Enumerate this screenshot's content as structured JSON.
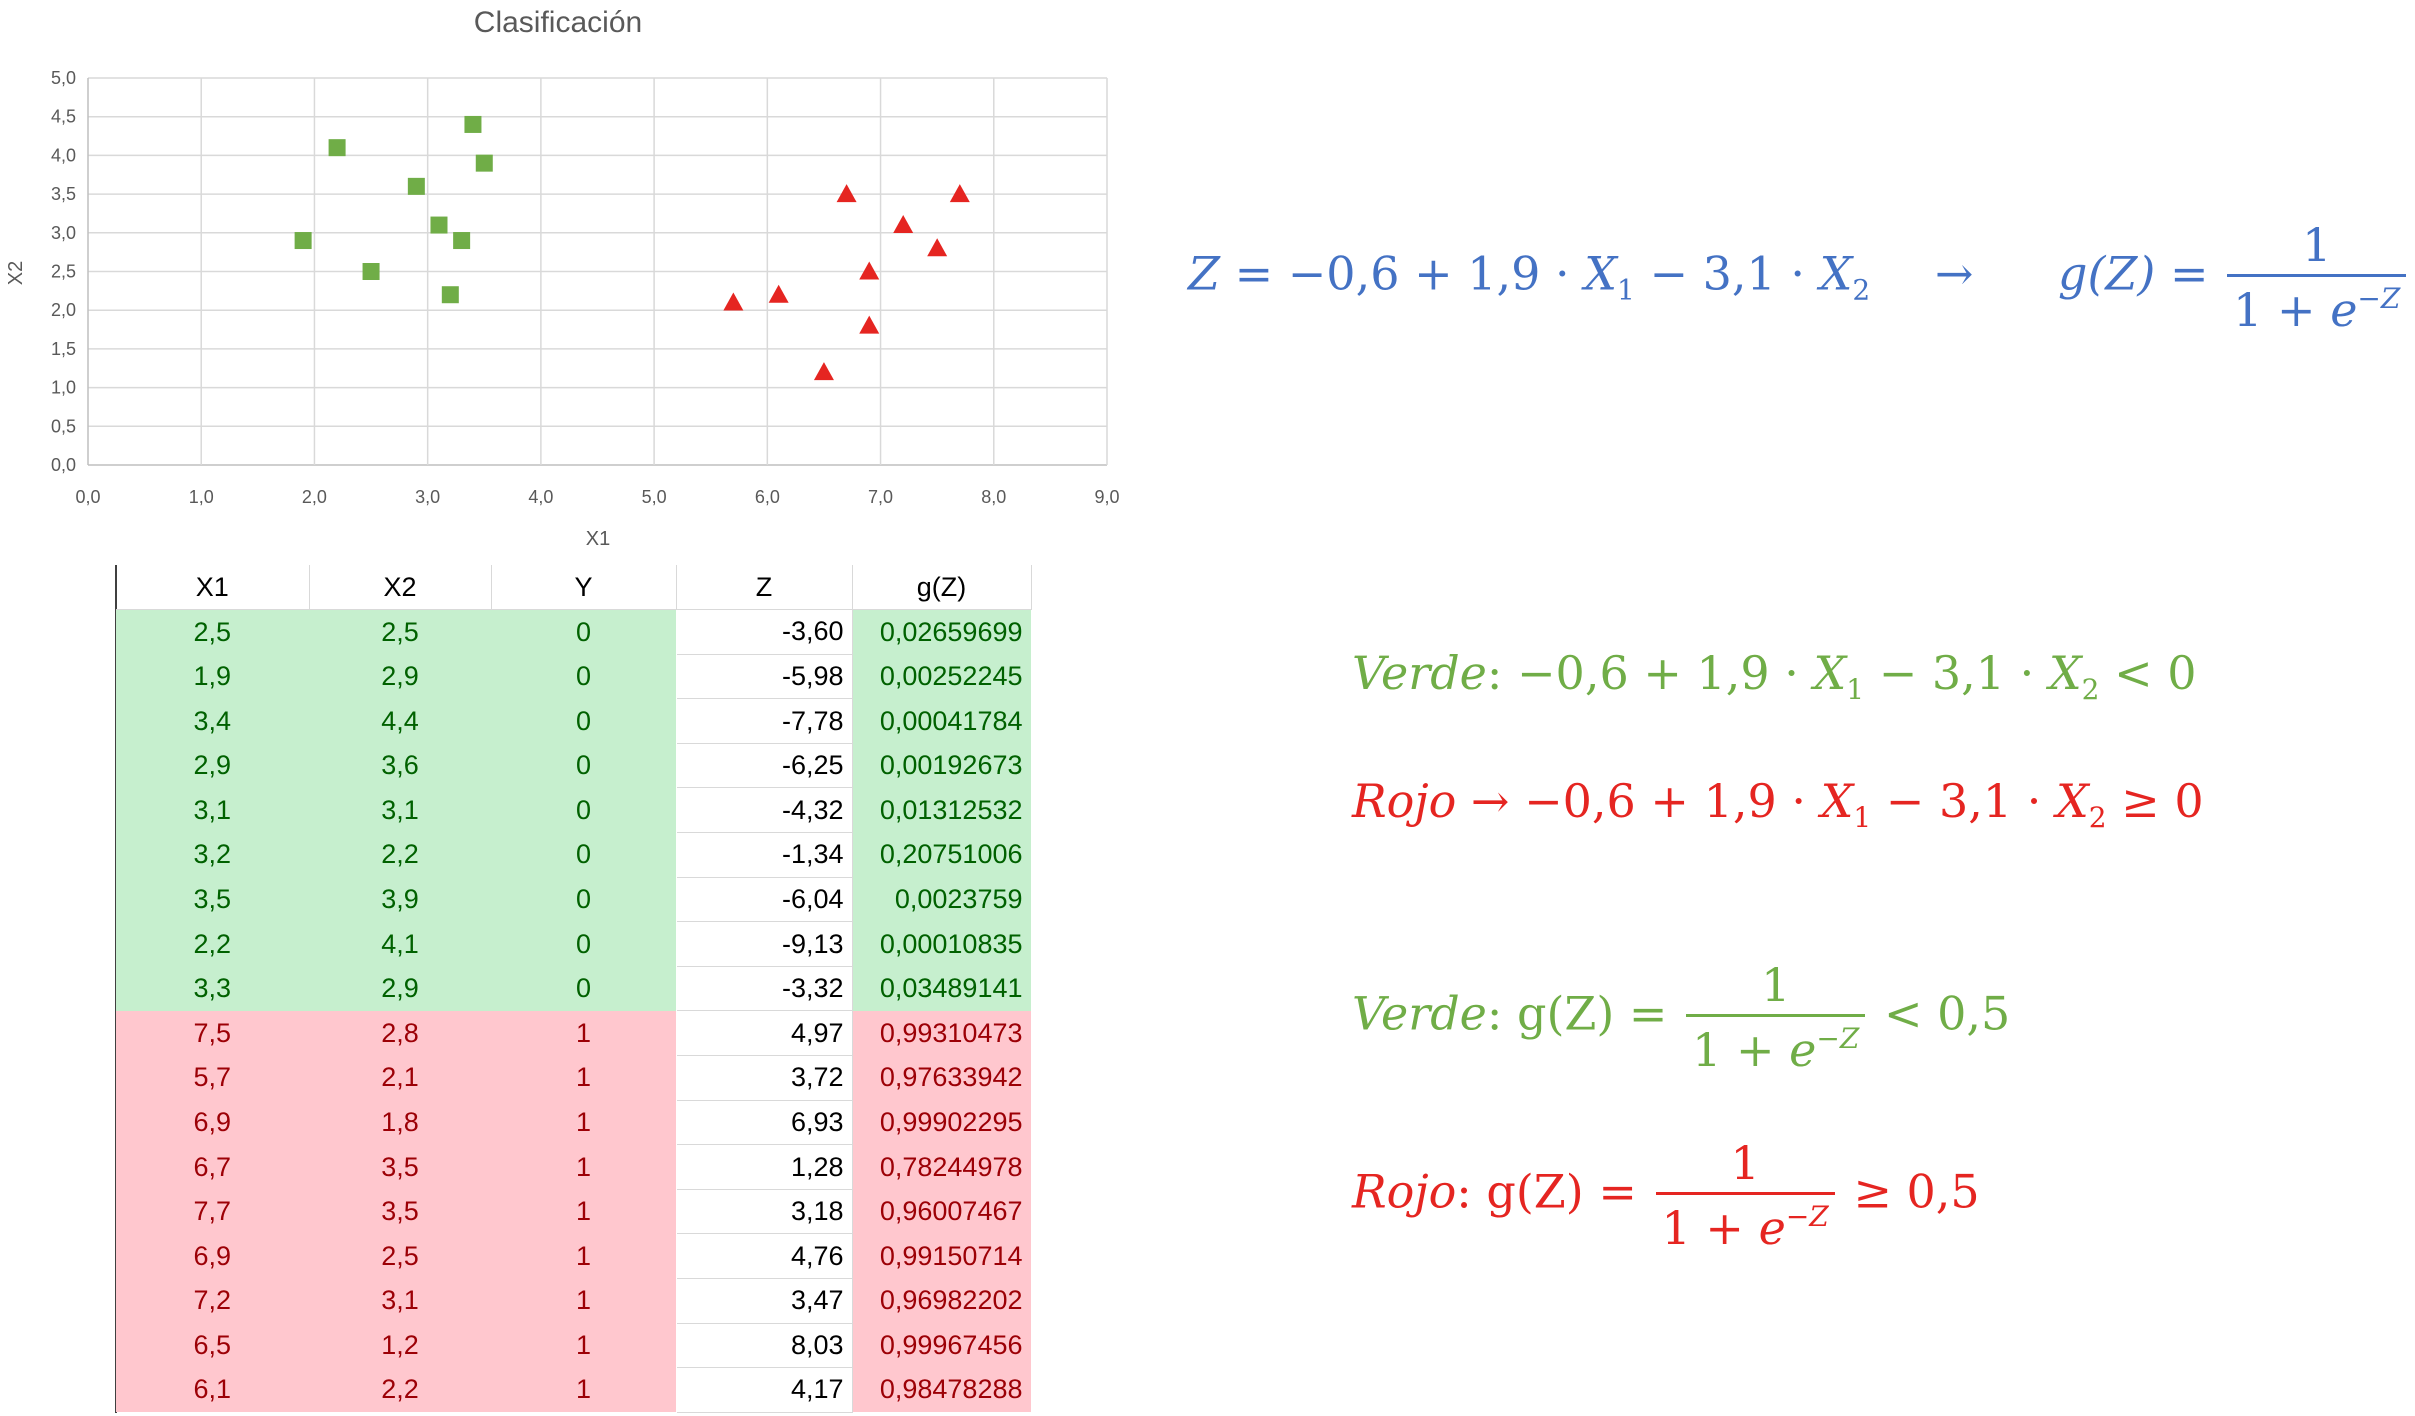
{
  "chart_data": {
    "type": "scatter",
    "title": "Clasificación",
    "xlabel": "X1",
    "ylabel": "X2",
    "xlim": [
      0,
      9
    ],
    "ylim": [
      0,
      5
    ],
    "x_ticks": [
      "0,0",
      "1,0",
      "2,0",
      "3,0",
      "4,0",
      "5,0",
      "6,0",
      "7,0",
      "8,0",
      "9,0"
    ],
    "y_ticks": [
      "0,0",
      "0,5",
      "1,0",
      "1,5",
      "2,0",
      "2,5",
      "3,0",
      "3,5",
      "4,0",
      "4,5",
      "5,0"
    ],
    "grid": true,
    "series": [
      {
        "marker": "square",
        "color": "#70ad47",
        "points": [
          [
            2.5,
            2.5
          ],
          [
            1.9,
            2.9
          ],
          [
            3.4,
            4.4
          ],
          [
            2.9,
            3.6
          ],
          [
            3.1,
            3.1
          ],
          [
            3.2,
            2.2
          ],
          [
            3.5,
            3.9
          ],
          [
            2.2,
            4.1
          ],
          [
            3.3,
            2.9
          ]
        ]
      },
      {
        "marker": "triangle",
        "color": "#e52521",
        "points": [
          [
            7.5,
            2.8
          ],
          [
            5.7,
            2.1
          ],
          [
            6.9,
            1.8
          ],
          [
            6.7,
            3.5
          ],
          [
            7.7,
            3.5
          ],
          [
            6.9,
            2.5
          ],
          [
            7.2,
            3.1
          ],
          [
            6.5,
            1.2
          ],
          [
            6.1,
            2.2
          ]
        ]
      }
    ]
  },
  "table": {
    "headers": [
      "X1",
      "X2",
      "Y",
      "Z",
      "g(Z)"
    ],
    "rows": [
      {
        "cls": "green",
        "cells": [
          "2,5",
          "2,5",
          "0",
          "-3,60",
          "0,02659699"
        ]
      },
      {
        "cls": "green",
        "cells": [
          "1,9",
          "2,9",
          "0",
          "-5,98",
          "0,00252245"
        ]
      },
      {
        "cls": "green",
        "cells": [
          "3,4",
          "4,4",
          "0",
          "-7,78",
          "0,00041784"
        ]
      },
      {
        "cls": "green",
        "cells": [
          "2,9",
          "3,6",
          "0",
          "-6,25",
          "0,00192673"
        ]
      },
      {
        "cls": "green",
        "cells": [
          "3,1",
          "3,1",
          "0",
          "-4,32",
          "0,01312532"
        ]
      },
      {
        "cls": "green",
        "cells": [
          "3,2",
          "2,2",
          "0",
          "-1,34",
          "0,20751006"
        ]
      },
      {
        "cls": "green",
        "cells": [
          "3,5",
          "3,9",
          "0",
          "-6,04",
          "0,0023759"
        ]
      },
      {
        "cls": "green",
        "cells": [
          "2,2",
          "4,1",
          "0",
          "-9,13",
          "0,00010835"
        ]
      },
      {
        "cls": "green",
        "cells": [
          "3,3",
          "2,9",
          "0",
          "-3,32",
          "0,03489141"
        ]
      },
      {
        "cls": "red",
        "cells": [
          "7,5",
          "2,8",
          "1",
          "4,97",
          "0,99310473"
        ]
      },
      {
        "cls": "red",
        "cells": [
          "5,7",
          "2,1",
          "1",
          "3,72",
          "0,97633942"
        ]
      },
      {
        "cls": "red",
        "cells": [
          "6,9",
          "1,8",
          "1",
          "6,93",
          "0,99902295"
        ]
      },
      {
        "cls": "red",
        "cells": [
          "6,7",
          "3,5",
          "1",
          "1,28",
          "0,78244978"
        ]
      },
      {
        "cls": "red",
        "cells": [
          "7,7",
          "3,5",
          "1",
          "3,18",
          "0,96007467"
        ]
      },
      {
        "cls": "red",
        "cells": [
          "6,9",
          "2,5",
          "1",
          "4,76",
          "0,99150714"
        ]
      },
      {
        "cls": "red",
        "cells": [
          "7,2",
          "3,1",
          "1",
          "3,47",
          "0,96982202"
        ]
      },
      {
        "cls": "red",
        "cells": [
          "6,5",
          "1,2",
          "1",
          "8,03",
          "0,99967456"
        ]
      },
      {
        "cls": "red",
        "cells": [
          "6,1",
          "2,2",
          "1",
          "4,17",
          "0,98478288"
        ]
      }
    ]
  },
  "formulas": {
    "z_eq": "= −0,6 + 1,9 · ",
    "minus": " − 3,1 · ",
    "arrow": "→",
    "g_eq": "g(Z) = ",
    "one": "1",
    "den": "1 + ",
    "e": "e",
    "neg_z": "−Z",
    "verde": "Verde",
    "rojo": "Rojo",
    "verde_ineq": ": −0,6 + 1,9 · ",
    "rojo_ineq": " → −0,6 + 1,9 · ",
    "lt0": " < 0",
    "ge0": " ≥ 0",
    "colon_g": ": g(Z) = ",
    "lt05": " < 0,5",
    "ge05": " ≥ 0,5"
  },
  "colors": {
    "blue": "#4472c4",
    "green": "#70ad47",
    "red": "#e52521"
  }
}
